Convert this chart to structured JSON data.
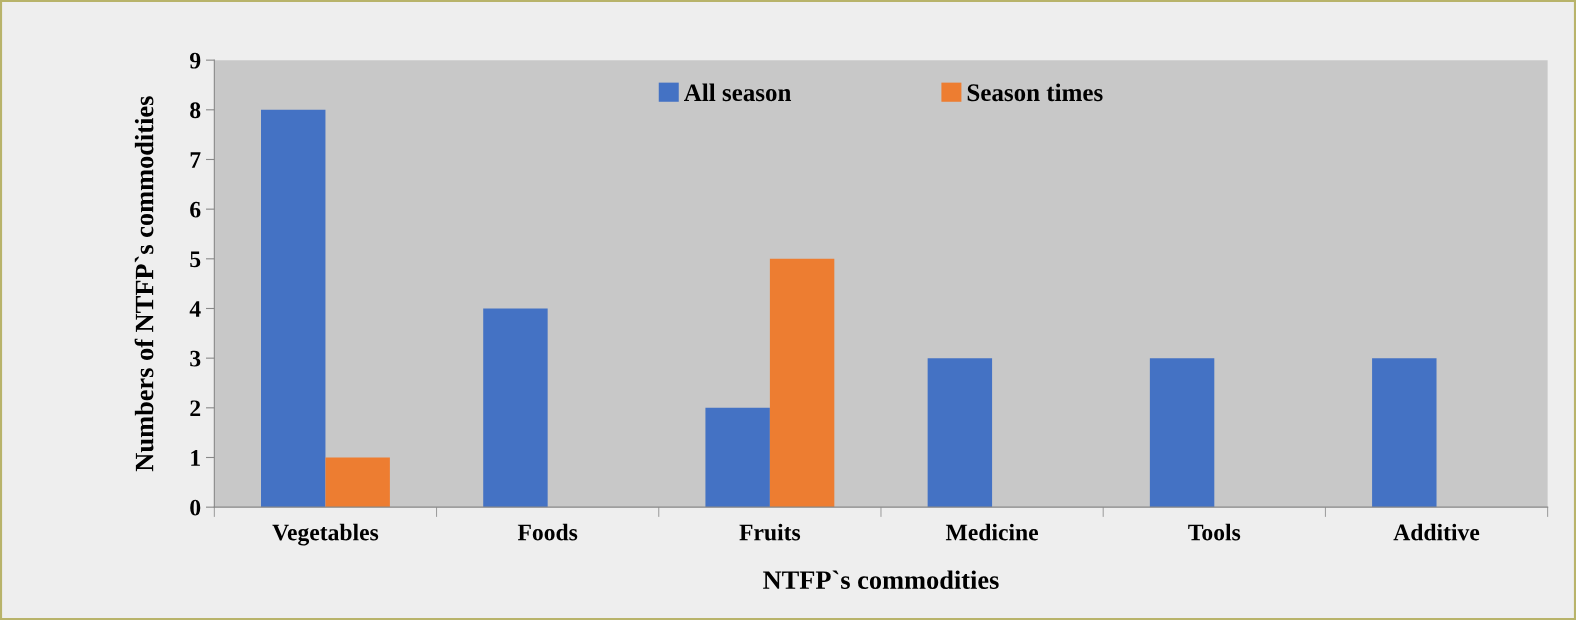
{
  "chart_data": {
    "type": "bar",
    "xlabel": "NTFP`s commodities",
    "ylabel": "Numbers of NTFP`s commodities",
    "categories": [
      "Vegetables",
      "Foods",
      "Fruits",
      "Medicine",
      "Tools",
      "Additive"
    ],
    "series": [
      {
        "name": "All season",
        "color": "#4472c4",
        "values": [
          8,
          4,
          2,
          3,
          3,
          3
        ]
      },
      {
        "name": "Season times",
        "color": "#ed7d31",
        "values": [
          1,
          0,
          5,
          0,
          0,
          0
        ]
      }
    ],
    "ylim": [
      0,
      9
    ],
    "yticks": [
      0,
      1,
      2,
      3,
      4,
      5,
      6,
      7,
      8,
      9
    ],
    "grid": false,
    "legend": "top"
  }
}
